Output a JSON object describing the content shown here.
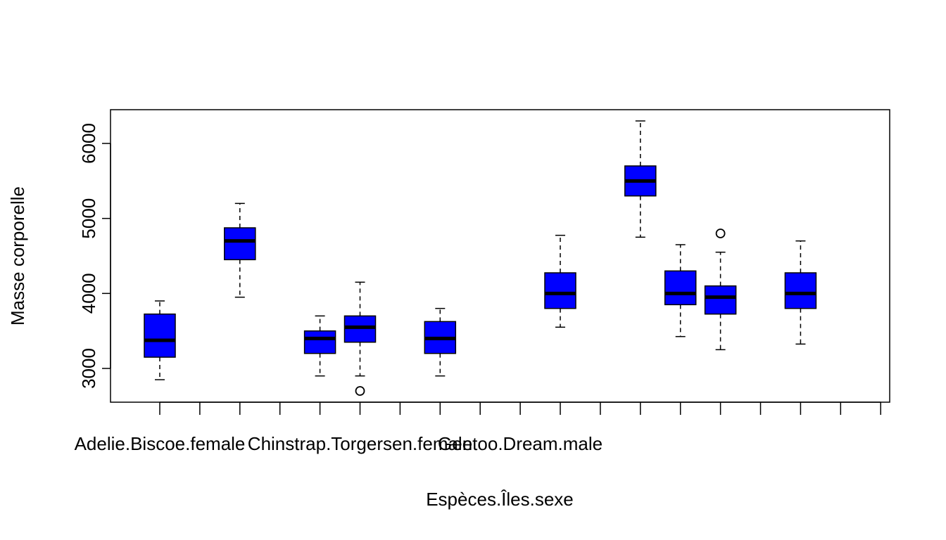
{
  "chart_data": {
    "type": "boxplot",
    "title": "",
    "xlabel": "Espèces.Îles.sexe",
    "ylabel": "Masse corporelle",
    "ylim": [
      2550,
      6450
    ],
    "yticks": [
      3000,
      4000,
      5000,
      6000
    ],
    "box_color": "#0000ff",
    "categories": [
      "Adelie.Biscoe.female",
      "",
      "",
      "",
      "",
      "Chinstrap.Torgersen.female",
      "",
      "",
      "",
      "Gentoo.Dream.male",
      "",
      "",
      "",
      "",
      "",
      "",
      "",
      "",
      ""
    ],
    "groups": [
      {
        "index": 1,
        "min": 2850,
        "q1": 3150,
        "median": 3375,
        "q3": 3725,
        "max": 3900,
        "outliers": []
      },
      {
        "index": 2,
        "empty": true
      },
      {
        "index": 3,
        "min": 3950,
        "q1": 4450,
        "median": 4700,
        "q3": 4875,
        "max": 5200,
        "outliers": []
      },
      {
        "index": 4,
        "empty": true
      },
      {
        "index": 5,
        "min": 2900,
        "q1": 3200,
        "median": 3400,
        "q3": 3500,
        "max": 3700,
        "outliers": []
      },
      {
        "index": 6,
        "min": 2900,
        "q1": 3350,
        "median": 3550,
        "q3": 3700,
        "max": 4150,
        "outliers": [
          2700
        ]
      },
      {
        "index": 7,
        "empty": true
      },
      {
        "index": 8,
        "min": 2900,
        "q1": 3200,
        "median": 3400,
        "q3": 3625,
        "max": 3800,
        "outliers": []
      },
      {
        "index": 9,
        "empty": true
      },
      {
        "index": 10,
        "empty": true
      },
      {
        "index": 11,
        "min": 3550,
        "q1": 3800,
        "median": 4000,
        "q3": 4275,
        "max": 4775,
        "outliers": []
      },
      {
        "index": 12,
        "empty": true
      },
      {
        "index": 13,
        "min": 4750,
        "q1": 5300,
        "median": 5500,
        "q3": 5700,
        "max": 6300,
        "outliers": []
      },
      {
        "index": 14,
        "min": 3425,
        "q1": 3850,
        "median": 4000,
        "q3": 4300,
        "max": 4650,
        "outliers": []
      },
      {
        "index": 15,
        "min": 3250,
        "q1": 3725,
        "median": 3950,
        "q3": 4100,
        "max": 4550,
        "outliers": [
          4800
        ]
      },
      {
        "index": 16,
        "empty": true
      },
      {
        "index": 17,
        "min": 3325,
        "q1": 3800,
        "median": 4000,
        "q3": 4275,
        "max": 4700,
        "outliers": []
      },
      {
        "index": 18,
        "empty": true
      },
      {
        "index": 19,
        "empty": true
      }
    ]
  }
}
